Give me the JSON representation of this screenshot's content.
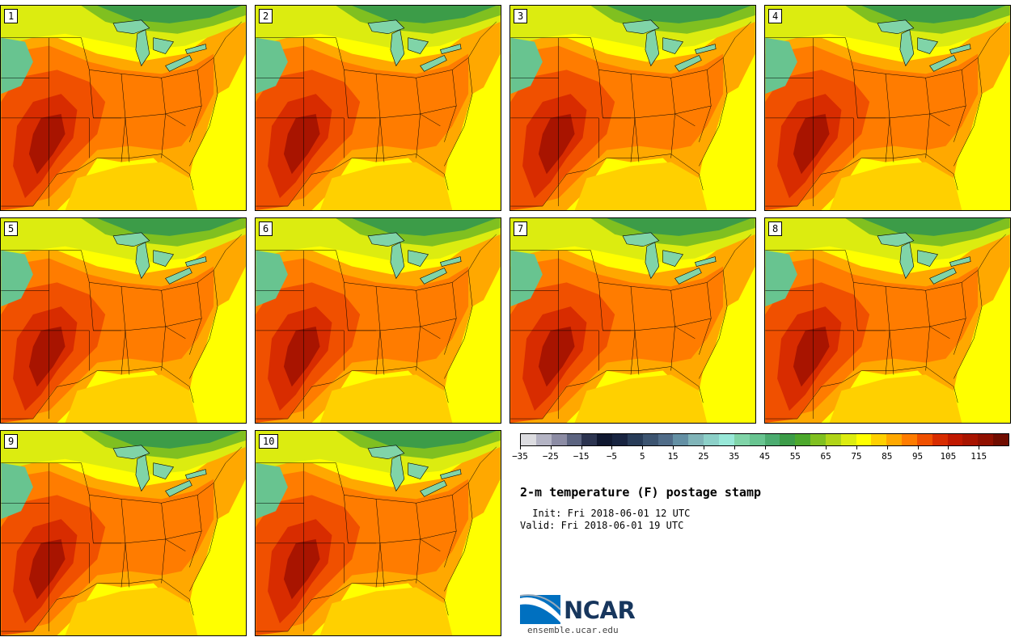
{
  "figure": {
    "title": "2-m temperature (F) postage stamp",
    "init": " Init: Fri 2018-06-01 12 UTC",
    "valid": "Valid: Fri 2018-06-01 19 UTC"
  },
  "panels": [
    {
      "label": "1"
    },
    {
      "label": "2"
    },
    {
      "label": "3"
    },
    {
      "label": "4"
    },
    {
      "label": "5"
    },
    {
      "label": "6"
    },
    {
      "label": "7"
    },
    {
      "label": "8"
    },
    {
      "label": "9"
    },
    {
      "label": "10"
    }
  ],
  "colorbar": {
    "label_units": "F",
    "colors": [
      "#dcdce0",
      "#b4b4c4",
      "#8c8ca4",
      "#5c6480",
      "#2c3450",
      "#101830",
      "#182440",
      "#283c58",
      "#3c5470",
      "#506c88",
      "#6490a4",
      "#80b4b8",
      "#8cd0c8",
      "#98e8d8",
      "#80d4a8",
      "#68c490",
      "#4cac70",
      "#3c9c48",
      "#4ca82c",
      "#80c020",
      "#b0d418",
      "#dcec10",
      "#ffff00",
      "#ffd000",
      "#ffa800",
      "#ff7c00",
      "#f05000",
      "#d82c00",
      "#c01800",
      "#a81400",
      "#901000",
      "#700c00"
    ],
    "ticks": [
      "-35",
      "-25",
      "-15",
      "-5",
      "5",
      "15",
      "25",
      "35",
      "45",
      "55",
      "65",
      "75",
      "85",
      "95",
      "105",
      "115"
    ]
  },
  "logo": {
    "name": "NCAR",
    "url": "ensemble.ucar.edu"
  }
}
